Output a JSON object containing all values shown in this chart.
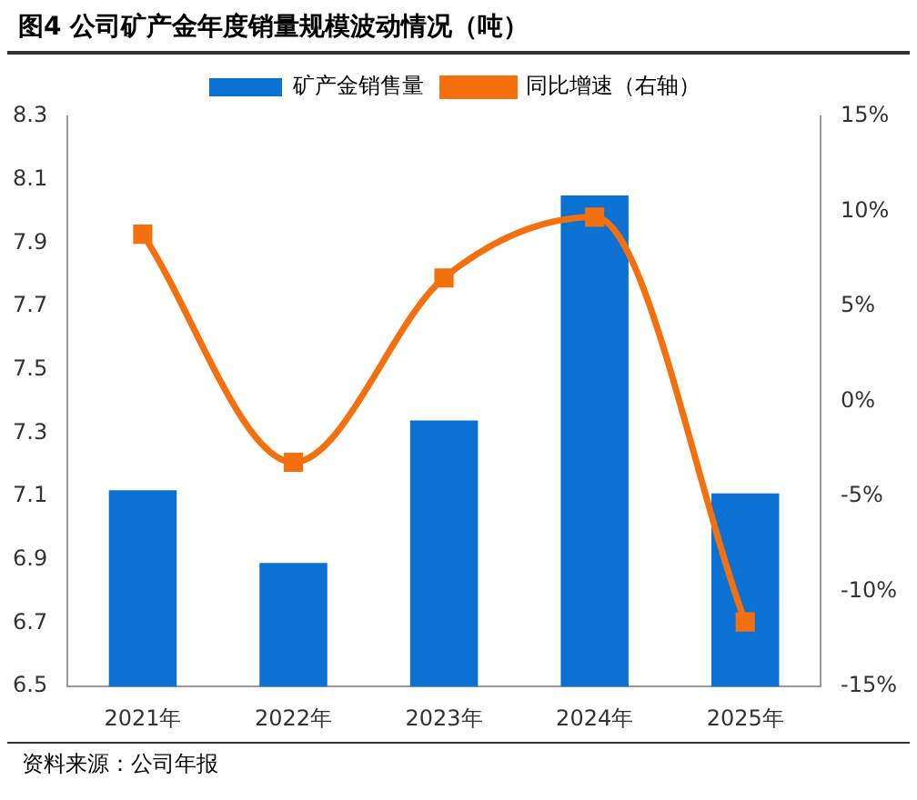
{
  "chart_data": {
    "type": "bar",
    "title": "图4  公司矿产金年度销量规模波动情况（吨）",
    "categories": [
      "2021年",
      "2022年",
      "2023年",
      "2024年",
      "2025年"
    ],
    "series": [
      {
        "name": "矿产金销售量",
        "color": "#0b72d4",
        "values": [
          7.12,
          6.89,
          7.34,
          8.05,
          7.11
        ]
      },
      {
        "name": "同比增速（右轴）",
        "type": "line",
        "axis": "y2",
        "color": "#f4700e",
        "values": [
          8.8,
          -3.2,
          6.5,
          9.7,
          -11.6
        ]
      }
    ],
    "ylim": [
      6.5,
      8.3
    ],
    "yticks": [
      6.5,
      6.7,
      6.9,
      7.1,
      7.3,
      7.5,
      7.7,
      7.9,
      8.1,
      8.3
    ],
    "y2lim": [
      -15,
      15
    ],
    "y2ticks": [
      {
        "value": -15,
        "label": "-15%"
      },
      {
        "value": -10,
        "label": "-10%"
      },
      {
        "value": -5,
        "label": "-5%"
      },
      {
        "value": 0,
        "label": "0%"
      },
      {
        "value": 5,
        "label": "5%"
      },
      {
        "value": 10,
        "label": "10%"
      },
      {
        "value": 15,
        "label": "15%"
      }
    ],
    "legend": "top",
    "marker": "square",
    "grid": false,
    "annotations": [
      "资料来源：公司年报"
    ]
  }
}
